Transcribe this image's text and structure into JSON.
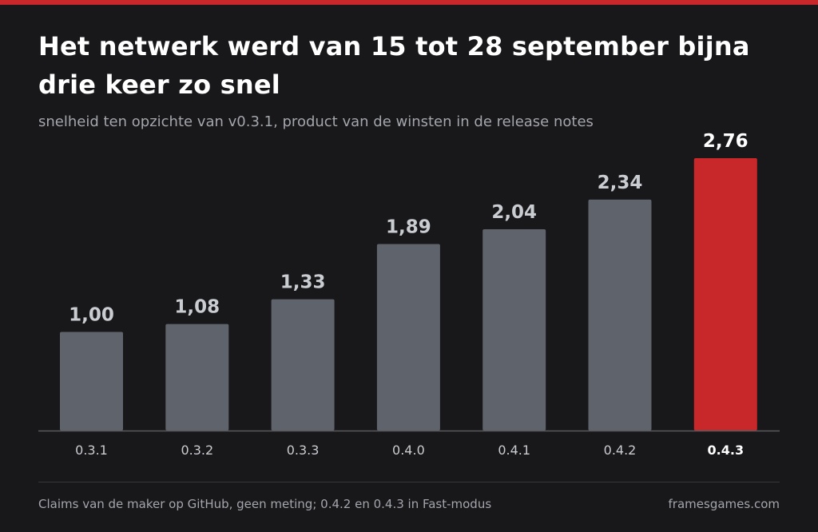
{
  "header": {
    "title": "Het netwerk werd van 15 tot 28 september bijna drie keer zo snel",
    "subtitle": "snelheid ten opzichte van v0.3.1, product van de winsten in de release notes"
  },
  "footer": {
    "note": "Claims van de maker op GitHub, geen meting; 0.4.2 en 0.4.3 in Fast-modus",
    "source": "framesgames.com"
  },
  "colors": {
    "background": "#18171a",
    "bar": "#5f636b",
    "highlight": "#c8282a",
    "value_label": "#c9ccd0",
    "highlight_label": "#ffffff",
    "axis": "#5a5a5e"
  },
  "chart_data": {
    "type": "bar",
    "title": "Het netwerk werd van 15 tot 28 september bijna drie keer zo snel",
    "subtitle": "snelheid ten opzichte van v0.3.1, product van de winsten in de release notes",
    "categories": [
      "0.3.1",
      "0.3.2",
      "0.3.3",
      "0.4.0",
      "0.4.1",
      "0.4.2",
      "0.4.3"
    ],
    "values": [
      1.0,
      1.08,
      1.33,
      1.89,
      2.04,
      2.34,
      2.76
    ],
    "value_labels": [
      "1,00",
      "1,08",
      "1,33",
      "1,89",
      "2,04",
      "2,34",
      "2,76"
    ],
    "highlight_category": "0.4.3",
    "xlabel": "",
    "ylabel": "",
    "ylim": [
      0,
      2.76
    ],
    "grid": false,
    "legend": "none"
  }
}
